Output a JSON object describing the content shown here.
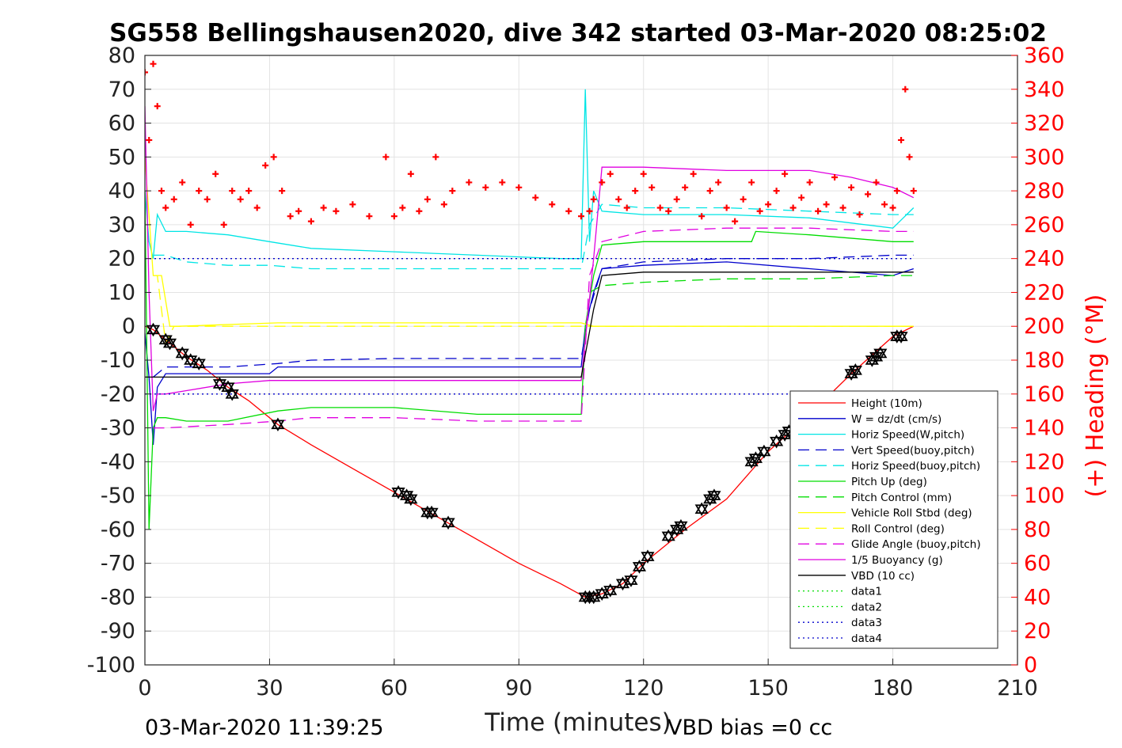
{
  "chart_data": {
    "type": "line",
    "title": "SG558 Bellingshausen2020, dive 342 started 03-Mar-2020 08:25:02",
    "xlabel": "Time (minutes)",
    "ylabel_right": "(+) Heading (°M)",
    "xlim": [
      0,
      210
    ],
    "ylim_left": [
      -100,
      80
    ],
    "ylim_right": [
      0,
      360
    ],
    "x_ticks": [
      "0",
      "30",
      "60",
      "90",
      "120",
      "150",
      "180",
      "210"
    ],
    "y_ticks_left": [
      "80",
      "70",
      "60",
      "50",
      "40",
      "30",
      "20",
      "10",
      "0",
      "-10",
      "-20",
      "-30",
      "-40",
      "-50",
      "-60",
      "-70",
      "-80",
      "-90",
      "-100"
    ],
    "y_ticks_right": [
      "360",
      "340",
      "320",
      "300",
      "280",
      "260",
      "240",
      "220",
      "200",
      "180",
      "160",
      "140",
      "120",
      "100",
      "80",
      "60",
      "40",
      "20",
      "0"
    ],
    "grid": true,
    "legend_position": "lower-right",
    "footer_left": "03-Mar-2020 11:39:25",
    "footer_right": "VBD bias =0 cc",
    "colors": {
      "height": "#ff0000",
      "w": "#0000cc",
      "horiz_speed": "#00e5e5",
      "pitch": "#00dd00",
      "roll": "#ffff00",
      "glide": "#e000e0",
      "vbd": "#000000",
      "heading": "#ff0000"
    },
    "series": [
      {
        "name": "Height (10m)",
        "color": "#ff0000",
        "style": "solid",
        "x": [
          0,
          1,
          2,
          5,
          10,
          15,
          20,
          25,
          32,
          40,
          50,
          60,
          70,
          80,
          90,
          100,
          106,
          110,
          115,
          120,
          130,
          140,
          150,
          160,
          170,
          180,
          185
        ],
        "y": [
          0,
          -0.5,
          -1,
          -4,
          -9,
          -13,
          -18,
          -22,
          -29,
          -35,
          -42,
          -49,
          -56,
          -63,
          -70,
          -76,
          -80,
          -79,
          -76,
          -70,
          -60,
          -51,
          -37,
          -26,
          -14,
          -3,
          0
        ]
      },
      {
        "name": "W = dz/dt (cm/s)",
        "color": "#0000cc",
        "style": "solid",
        "x": [
          0,
          1,
          2,
          3,
          5,
          10,
          20,
          30,
          32,
          40,
          60,
          80,
          105,
          106,
          108,
          110,
          120,
          140,
          160,
          180,
          185
        ],
        "y": [
          -2,
          -15,
          -35,
          -18,
          -14,
          -14,
          -14,
          -14,
          -12,
          -12,
          -12,
          -12,
          -12,
          0,
          10,
          17,
          18,
          19,
          17,
          15,
          17
        ]
      },
      {
        "name": "Horiz Speed(W,pitch)",
        "color": "#00e5e5",
        "style": "solid",
        "x": [
          0,
          1,
          2,
          3,
          5,
          10,
          20,
          30,
          40,
          60,
          80,
          100,
          105,
          106,
          107,
          108,
          110,
          120,
          140,
          160,
          180,
          185
        ],
        "y": [
          40,
          25,
          20,
          33,
          28,
          28,
          27,
          25,
          23,
          22,
          21,
          20,
          20,
          70,
          25,
          40,
          34,
          33,
          33,
          32,
          29,
          35
        ]
      },
      {
        "name": "Vert Speed(buoy,pitch)",
        "color": "#0000cc",
        "style": "dash",
        "x": [
          2,
          5,
          20,
          32,
          40,
          60,
          80,
          105,
          107,
          110,
          120,
          140,
          160,
          180,
          185
        ],
        "y": [
          -15,
          -12,
          -12,
          -11,
          -10,
          -9.5,
          -9.5,
          -9.5,
          5,
          17,
          19,
          20,
          20,
          21,
          21
        ]
      },
      {
        "name": "Horiz Speed(buoy,pitch)",
        "color": "#00e5e5",
        "style": "dash",
        "x": [
          2,
          5,
          10,
          20,
          30,
          40,
          60,
          80,
          105,
          107,
          110,
          120,
          140,
          160,
          180,
          185
        ],
        "y": [
          21,
          21,
          19,
          18,
          18,
          17,
          17,
          17,
          17,
          30,
          36,
          35,
          35,
          34,
          33,
          33
        ]
      },
      {
        "name": "Pitch Up (deg)",
        "color": "#00dd00",
        "style": "solid",
        "x": [
          0,
          1,
          2,
          3,
          5,
          10,
          20,
          32,
          40,
          60,
          80,
          105,
          106,
          108,
          110,
          120,
          146,
          147,
          160,
          180,
          185
        ],
        "y": [
          40,
          -60,
          -30,
          -27,
          -27,
          -28,
          -28,
          -25,
          -24,
          -24,
          -26,
          -26,
          0,
          15,
          24,
          25,
          25,
          28,
          27,
          25,
          25
        ]
      },
      {
        "name": "Pitch Control (mm)",
        "color": "#00dd00",
        "style": "dash",
        "x": [
          107,
          110,
          120,
          140,
          160,
          180,
          185
        ],
        "y": [
          10,
          12,
          13,
          14,
          14,
          15,
          15
        ]
      },
      {
        "name": "Vehicle Roll Stbd (deg)",
        "color": "#ffff00",
        "style": "solid",
        "x": [
          0,
          2,
          4,
          6,
          8,
          32,
          40,
          60,
          80,
          100,
          105,
          108,
          110,
          120,
          140,
          160,
          180,
          185
        ],
        "y": [
          50,
          15,
          15,
          0,
          0,
          1,
          1,
          1,
          1,
          1,
          1,
          0,
          0,
          0,
          0,
          0,
          0,
          0
        ]
      },
      {
        "name": "Roll Control (deg)",
        "color": "#ffff00",
        "style": "dash",
        "x": [
          2,
          3,
          5,
          7,
          185
        ],
        "y": [
          15,
          15,
          -5,
          0,
          0
        ]
      },
      {
        "name": "Glide Angle (buoy,pitch)",
        "color": "#e000e0",
        "style": "dash",
        "x": [
          2,
          5,
          20,
          32,
          40,
          60,
          80,
          105,
          107,
          110,
          120,
          140,
          160,
          180,
          185
        ],
        "y": [
          -30,
          -30,
          -29,
          -28,
          -27,
          -27,
          -28,
          -28,
          15,
          25,
          28,
          29,
          29,
          28,
          28
        ]
      },
      {
        "name": "1/5 Buoyancy (g)",
        "color": "#e000e0",
        "style": "solid",
        "x": [
          0,
          1,
          2,
          3,
          5,
          10,
          20,
          30,
          40,
          60,
          80,
          105,
          108,
          110,
          120,
          140,
          160,
          170,
          180,
          185
        ],
        "y": [
          65,
          10,
          -25,
          -20,
          -20,
          -19,
          -17,
          -16,
          -16,
          -16,
          -16,
          -16,
          20,
          47,
          47,
          46,
          46,
          44,
          41,
          38
        ]
      },
      {
        "name": "VBD (10 cc)",
        "color": "#000000",
        "style": "solid",
        "x": [
          0,
          2,
          5,
          20,
          40,
          60,
          80,
          105,
          108,
          110,
          120,
          140,
          160,
          180,
          185
        ],
        "y": [
          -15,
          -15,
          -15,
          -15,
          -15,
          -15,
          -15,
          -15,
          5,
          15,
          16,
          16,
          16,
          16,
          16
        ]
      },
      {
        "name": "data1",
        "color": "#00dd00",
        "style": "dot",
        "x": [],
        "y": []
      },
      {
        "name": "data2",
        "color": "#00dd00",
        "style": "dot",
        "x": [],
        "y": []
      },
      {
        "name": "data3",
        "color": "#0000cc",
        "style": "dot",
        "x": [
          0,
          185
        ],
        "y": [
          20,
          20
        ]
      },
      {
        "name": "data4",
        "color": "#0000cc",
        "style": "dot",
        "x": [
          0,
          185
        ],
        "y": [
          -20,
          -20
        ]
      }
    ],
    "heading_series": {
      "axis": "right",
      "color": "#ff0000",
      "marker": "+",
      "x": [
        0,
        1,
        2,
        3,
        4,
        5,
        7,
        9,
        11,
        13,
        15,
        17,
        19,
        21,
        23,
        25,
        27,
        29,
        31,
        33,
        35,
        37,
        40,
        43,
        46,
        50,
        54,
        58,
        60,
        62,
        64,
        66,
        68,
        70,
        72,
        74,
        78,
        82,
        86,
        90,
        94,
        98,
        102,
        105,
        107,
        108,
        110,
        112,
        114,
        116,
        118,
        120,
        122,
        124,
        126,
        128,
        130,
        132,
        134,
        136,
        138,
        140,
        142,
        144,
        146,
        148,
        150,
        152,
        154,
        156,
        158,
        160,
        162,
        164,
        166,
        168,
        170,
        172,
        174,
        176,
        178,
        180,
        181,
        182,
        183,
        184,
        185
      ],
      "y": [
        350,
        310,
        355,
        330,
        280,
        270,
        275,
        285,
        260,
        280,
        275,
        290,
        260,
        280,
        275,
        280,
        270,
        295,
        300,
        280,
        265,
        268,
        262,
        270,
        268,
        272,
        265,
        300,
        265,
        270,
        290,
        268,
        275,
        300,
        272,
        280,
        285,
        282,
        285,
        282,
        276,
        272,
        268,
        265,
        268,
        275,
        285,
        290,
        275,
        270,
        280,
        290,
        282,
        270,
        268,
        275,
        282,
        290,
        265,
        280,
        285,
        270,
        262,
        275,
        285,
        268,
        272,
        280,
        290,
        270,
        276,
        285,
        268,
        272,
        288,
        270,
        282,
        266,
        278,
        285,
        272,
        270,
        280,
        310,
        340,
        300,
        280
      ]
    },
    "markers": {
      "shape": "triangle-pair",
      "color": "#000000",
      "x": [
        2,
        5,
        6,
        9,
        11,
        13,
        18,
        20,
        21,
        32,
        61,
        63,
        64,
        68,
        69,
        73,
        106,
        107,
        108,
        110,
        112,
        115,
        117,
        119,
        121,
        126,
        128,
        129,
        134,
        136,
        137,
        146,
        147,
        149,
        152,
        154,
        155,
        170,
        171,
        175,
        176,
        177,
        181,
        182
      ],
      "y": [
        -1,
        -4,
        -5,
        -8,
        -10,
        -11,
        -17,
        -18,
        -20,
        -29,
        -49,
        -50,
        -51,
        -55,
        -55,
        -58,
        -80,
        -80,
        -80,
        -79,
        -78,
        -76,
        -75,
        -71,
        -68,
        -62,
        -60,
        -59,
        -54,
        -51,
        -50,
        -40,
        -39,
        -37,
        -34,
        -32,
        -31,
        -14,
        -13,
        -10,
        -9,
        -8,
        -3,
        -3
      ]
    }
  }
}
